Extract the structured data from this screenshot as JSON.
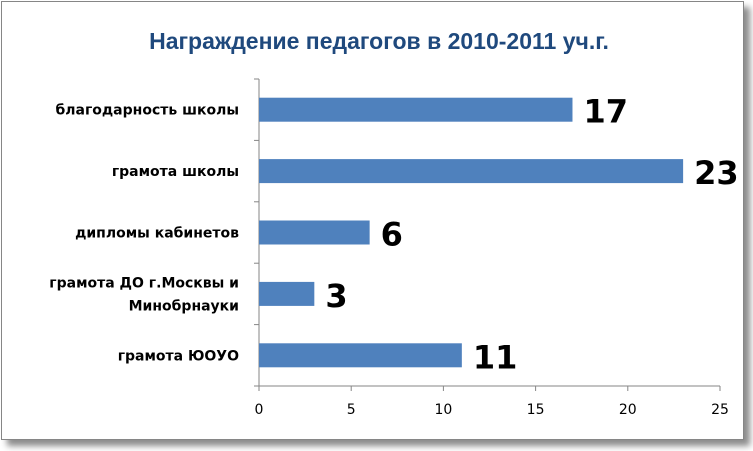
{
  "chart_data": {
    "type": "bar",
    "orientation": "horizontal",
    "title": "Награждение педагогов в 2010-2011 уч.г.",
    "categories": [
      "благодарность школы",
      "грамота школы",
      "дипломы кабинетов",
      [
        "грамота ДО г.Москвы и",
        "Минобрнауки"
      ],
      "грамота ЮОУО"
    ],
    "values": [
      17,
      23,
      6,
      3,
      11
    ],
    "data_labels": [
      "17",
      "23",
      "6",
      "3",
      "11"
    ],
    "xlim": [
      0,
      25
    ],
    "x_ticks": [
      0,
      5,
      10,
      15,
      20,
      25
    ],
    "bar_color": "#4f81bd",
    "grid": false,
    "legend": "none"
  }
}
